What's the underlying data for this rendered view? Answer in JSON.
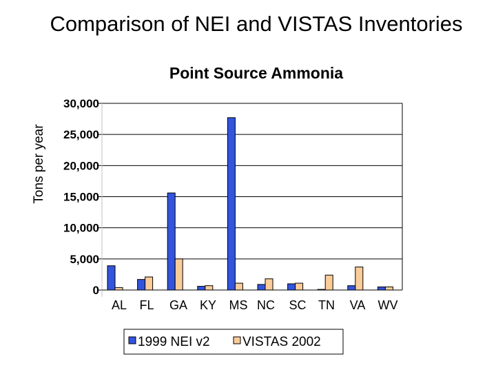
{
  "title": "Comparison of NEI and VISTAS Inventories",
  "subtitle": "Point Source Ammonia",
  "chart_data": {
    "type": "bar",
    "title": "Comparison of NEI and VISTAS Inventories",
    "subtitle": "Point Source Ammonia",
    "xlabel": "",
    "ylabel": "Tons per year",
    "ylim": [
      0,
      30000
    ],
    "yticks": [
      0,
      5000,
      10000,
      15000,
      20000,
      25000,
      30000
    ],
    "ytick_labels": [
      "0",
      "5,000",
      "10,000",
      "15,000",
      "20,000",
      "25,000",
      "30,000"
    ],
    "categories": [
      "AL",
      "FL",
      "GA",
      "KY",
      "MS",
      "NC",
      "SC",
      "TN",
      "VA",
      "WV"
    ],
    "series": [
      {
        "name": "1999 NEI v2",
        "color": "#3355dd",
        "values": [
          3900,
          1700,
          15600,
          600,
          27700,
          900,
          1000,
          100,
          700,
          500
        ]
      },
      {
        "name": "VISTAS 2002",
        "color": "#f9cc99",
        "values": [
          400,
          2100,
          5000,
          700,
          1100,
          1800,
          1100,
          2400,
          3700,
          500
        ]
      }
    ],
    "grid": true,
    "legend": "bottom-center"
  }
}
